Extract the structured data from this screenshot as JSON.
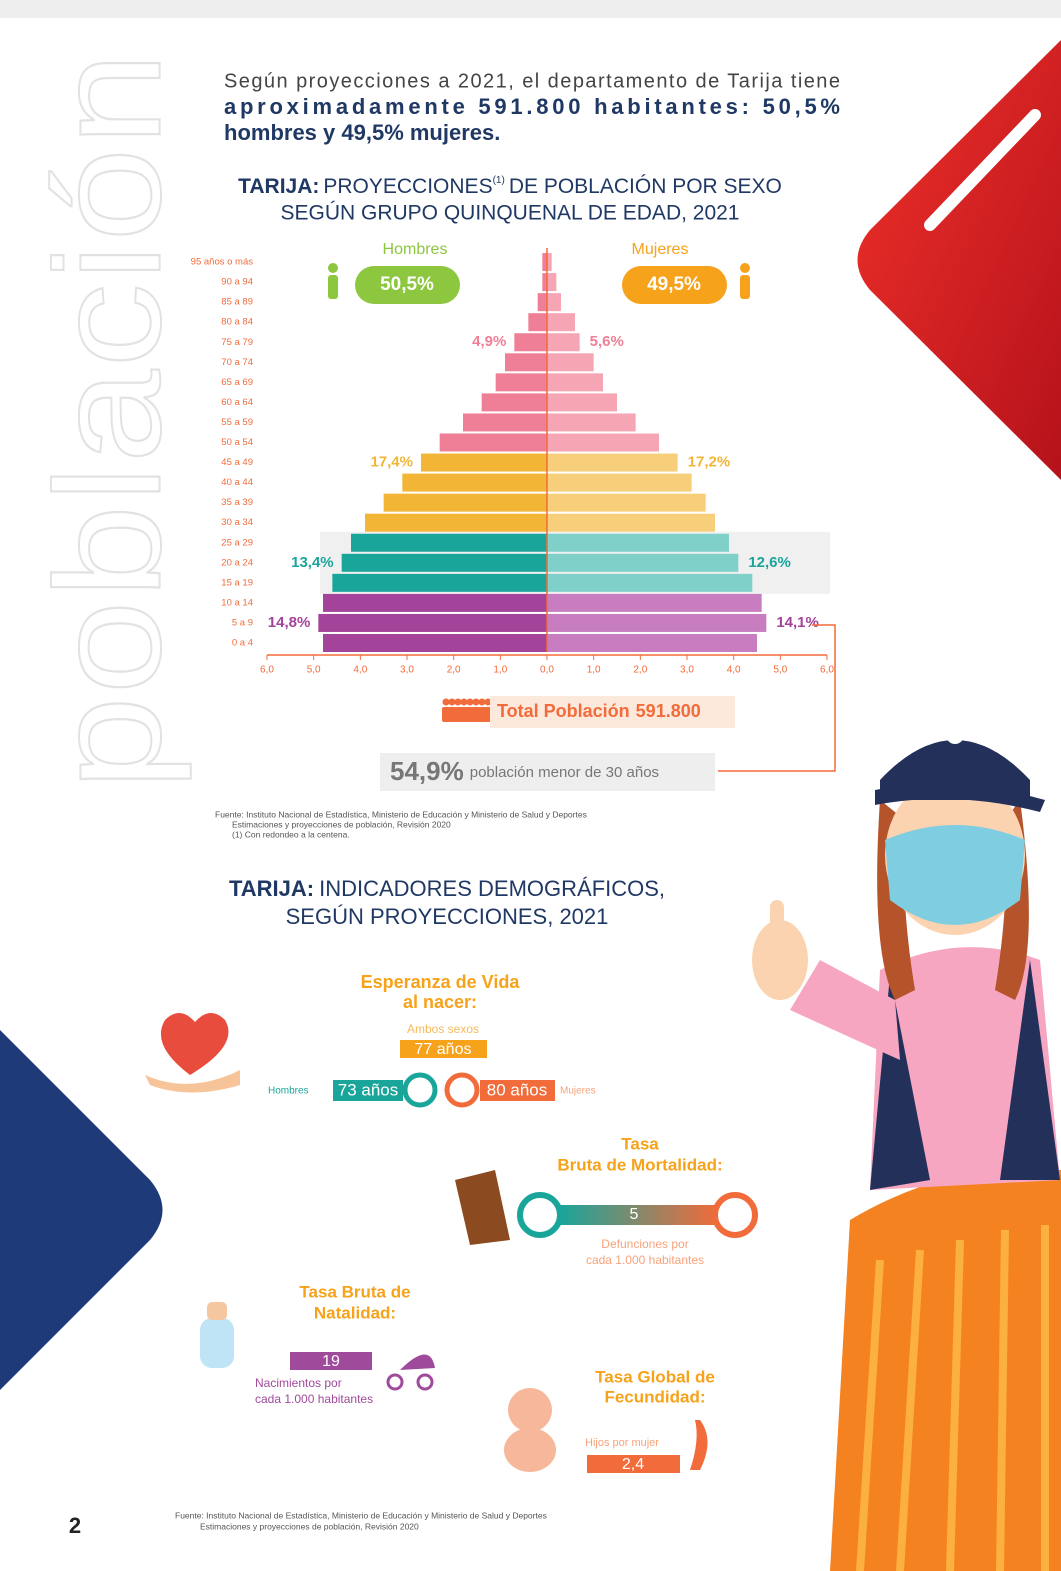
{
  "page_label": "población",
  "intro": [
    "Según proyecciones a 2021, el departamento de Tarija tiene",
    "aproximadamente 591.800 habitantes: 50,5%",
    "hombres y 49,5% mujeres."
  ],
  "chart_data": {
    "type": "pyramid",
    "title_bold": "TARIJA:",
    "title": "PROYECCIONES",
    "title_note": "(1)",
    "title_rest": [
      "DE POBLACIÓN POR SEXO",
      "SEGÚN GRUPO QUINQUENAL DE EDAD, 2021"
    ],
    "categories": [
      "0 a 4",
      "5 a 9",
      "10 a 14",
      "15 a 19",
      "20 a 24",
      "25 a 29",
      "30 a 34",
      "35 a 39",
      "40 a 44",
      "45 a 49",
      "50 a 54",
      "55 a 59",
      "60 a 64",
      "65 a 69",
      "70 a 74",
      "75 a 79",
      "80 a 84",
      "85 a 89",
      "90 a 94",
      "95 años o más"
    ],
    "series": [
      {
        "name": "Hombres",
        "share_label": "50,5%",
        "color": "#8dc63f",
        "colors": [
          "#a3439a",
          "#a3439a",
          "#a3439a",
          "#1aa59b",
          "#1aa59b",
          "#1aa59b",
          "#f2b535",
          "#f2b535",
          "#f2b535",
          "#f2b535",
          "#ef7f96",
          "#ef7f96",
          "#ef7f96",
          "#ef7f96",
          "#ef7f96",
          "#ef7f96",
          "#ef7f96",
          "#ef7f96",
          "#ef7f96",
          "#ef7f96"
        ],
        "values": [
          4.8,
          4.9,
          4.8,
          4.6,
          4.4,
          4.2,
          3.9,
          3.5,
          3.1,
          2.7,
          2.3,
          1.8,
          1.4,
          1.1,
          0.9,
          0.7,
          0.4,
          0.2,
          0.1,
          0.1
        ]
      },
      {
        "name": "Mujeres",
        "share_label": "49,5%",
        "color": "#f7a21b",
        "colors": [
          "#c77dbf",
          "#c77dbf",
          "#c77dbf",
          "#7fd0c9",
          "#7fd0c9",
          "#7fd0c9",
          "#f7cf7a",
          "#f7cf7a",
          "#f7cf7a",
          "#f7cf7a",
          "#f5a5b4",
          "#f5a5b4",
          "#f5a5b4",
          "#f5a5b4",
          "#f5a5b4",
          "#f5a5b4",
          "#f5a5b4",
          "#f5a5b4",
          "#f5a5b4",
          "#f5a5b4"
        ],
        "values": [
          4.5,
          4.7,
          4.6,
          4.4,
          4.1,
          3.9,
          3.6,
          3.4,
          3.1,
          2.8,
          2.4,
          1.9,
          1.5,
          1.2,
          1.0,
          0.7,
          0.6,
          0.3,
          0.2,
          0.1
        ]
      }
    ],
    "group_labels": [
      [
        "14,8%",
        "14,1%"
      ],
      [
        "13,4%",
        "12,6%"
      ],
      [
        "17,4%",
        "17,2%"
      ],
      [
        "4,9%",
        "5,6%"
      ]
    ],
    "xlim": [
      0,
      6
    ],
    "xticks": [
      {
        "value": 0,
        "label": "0,0"
      },
      {
        "value": 1,
        "label": "1,0"
      },
      {
        "value": 2,
        "label": "2,0"
      },
      {
        "value": 3,
        "label": "3,0"
      },
      {
        "value": 4,
        "label": "4,0"
      },
      {
        "value": 5,
        "label": "5,0"
      },
      {
        "value": 6,
        "label": "6,0"
      }
    ],
    "total_label": "Total Población",
    "total_value": "591.800",
    "under30_value": "54,9%",
    "under30_text": "población menor de 30 años",
    "source": [
      "Fuente: Instituto Nacional de Estadística, Ministerio de Educación y Ministerio de Salud y Deportes",
      "Estimaciones y proyecciones de población, Revisión 2020",
      "(1) Con redondeo a la centena."
    ]
  },
  "indicators": {
    "title_bold": "TARIJA:",
    "title": [
      "INDICADORES DEMOGRÁFICOS,",
      "SEGÚN PROYECCIONES, 2021"
    ],
    "life": {
      "title": [
        "Esperanza de Vida",
        "al nacer:"
      ],
      "both_label": "Ambos sexos",
      "both_value": "77 años",
      "men_label": "Hombres",
      "men_value": "73 años",
      "women_value": "80 años",
      "women_label": "Mujeres"
    },
    "mortality": {
      "title": [
        "Tasa",
        "Bruta de Mortalidad:"
      ],
      "value": "5",
      "note": [
        "Defunciones por",
        "cada 1.000 habitantes"
      ]
    },
    "natality": {
      "title": [
        "Tasa Bruta de",
        "Natalidad:"
      ],
      "value": "19",
      "note": [
        "Nacimientos por",
        "cada 1.000 habitantes"
      ]
    },
    "fertility": {
      "title": [
        "Tasa Global de",
        "Fecundidad:"
      ],
      "note": "Hijos por mujer",
      "value": "2,4"
    }
  },
  "footer": {
    "page_number": "2",
    "source": [
      "Fuente: Instituto Nacional de Estadística, Ministerio de Educación y Ministerio de Salud y Deportes",
      "Estimaciones y proyecciones de población, Revisión 2020"
    ]
  }
}
